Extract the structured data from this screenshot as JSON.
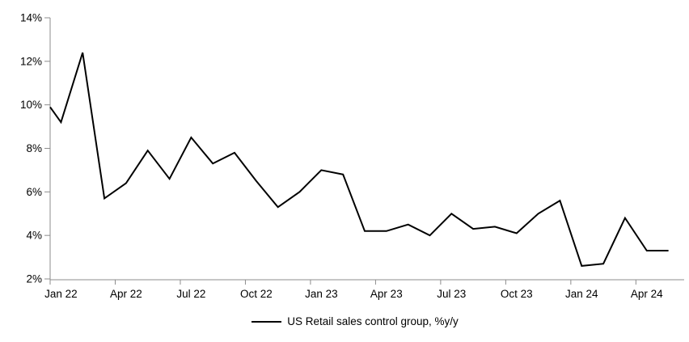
{
  "chart_data": {
    "type": "line",
    "title": "",
    "categories": [
      "Jan 22",
      "Feb 22",
      "Mar 22",
      "Apr 22",
      "May 22",
      "Jun 22",
      "Jul 22",
      "Aug 22",
      "Sep 22",
      "Oct 22",
      "Nov 22",
      "Dec 22",
      "Jan 23",
      "Feb 23",
      "Mar 23",
      "Apr 23",
      "May 23",
      "Jun 23",
      "Jul 23",
      "Aug 23",
      "Sep 23",
      "Oct 23",
      "Nov 23",
      "Dec 23",
      "Jan 24",
      "Feb 24",
      "Mar 24",
      "Apr 24",
      "May 24"
    ],
    "series": [
      {
        "name": "US Retail sales control group, %y/y",
        "color": "#000000",
        "values": [
          9.2,
          12.4,
          5.7,
          6.4,
          7.9,
          6.6,
          8.5,
          7.3,
          7.8,
          6.5,
          5.3,
          6.0,
          7.0,
          6.8,
          4.2,
          4.2,
          4.5,
          4.0,
          5.0,
          4.3,
          4.4,
          4.1,
          5.0,
          5.6,
          2.6,
          2.7,
          4.8,
          3.3,
          3.3
        ]
      }
    ],
    "left_edge_entry_value": 9.9,
    "xlabel": "",
    "ylabel": "",
    "ylim": [
      2,
      14
    ],
    "y_tick_step": 2,
    "y_ticks": [
      "2%",
      "4%",
      "6%",
      "8%",
      "10%",
      "12%",
      "14%"
    ],
    "x_tick_labels": [
      "Jan 22",
      "Apr 22",
      "Jul 22",
      "Oct 22",
      "Jan 23",
      "Apr 23",
      "Jul 23",
      "Oct 23",
      "Jan 24",
      "Apr 24"
    ],
    "x_label_every": 3,
    "grid": false,
    "legend_position": "bottom",
    "axis_color": "#8c8c8c",
    "text_color": "#000000"
  },
  "legend": {
    "label": "US Retail sales control group, %y/y"
  }
}
